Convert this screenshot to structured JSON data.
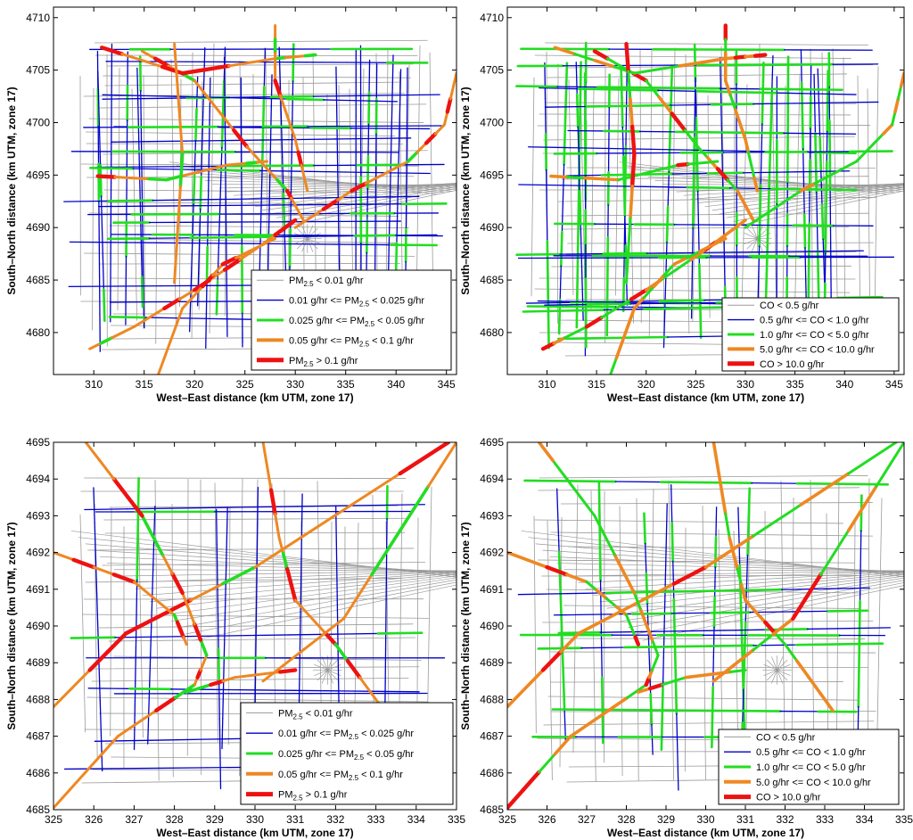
{
  "figure": {
    "panels": [
      {
        "id": "top-left",
        "pollutant": "pm25",
        "xlabel": "West–East distance (km UTM, zone 17)",
        "ylabel": "South–North distance (km UTM, zone 17)",
        "xlim": [
          306,
          346
        ],
        "ylim": [
          4676,
          4711
        ],
        "xticks": [
          "310",
          "315",
          "320",
          "325",
          "330",
          "335",
          "340",
          "345"
        ],
        "yticks": [
          "4680",
          "4685",
          "4690",
          "4695",
          "4700",
          "4705",
          "4710"
        ],
        "legend_location": "lower-right"
      },
      {
        "id": "top-right",
        "pollutant": "co",
        "xlabel": "West–East distance (km UTM, zone 17)",
        "ylabel": "South–North distance (km UTM, zone 17)",
        "xlim": [
          306,
          346
        ],
        "ylim": [
          4676,
          4711
        ],
        "xticks": [
          "310",
          "315",
          "320",
          "325",
          "330",
          "335",
          "340",
          "345"
        ],
        "yticks": [
          "4680",
          "4685",
          "4690",
          "4695",
          "4700",
          "4705",
          "4710"
        ],
        "legend_location": "lower-right"
      },
      {
        "id": "bottom-left",
        "pollutant": "pm25",
        "xlabel": "West–East distance (km UTM, zone 17)",
        "ylabel": "South–North distance (km UTM, zone 17)",
        "xlim": [
          325,
          335
        ],
        "ylim": [
          4685,
          4695
        ],
        "xticks": [
          "325",
          "326",
          "327",
          "328",
          "329",
          "330",
          "331",
          "332",
          "333",
          "334",
          "335"
        ],
        "yticks": [
          "4685",
          "4686",
          "4687",
          "4688",
          "4689",
          "4690",
          "4691",
          "4692",
          "4693",
          "4694",
          "4695"
        ],
        "legend_location": "lower-right"
      },
      {
        "id": "bottom-right",
        "pollutant": "co",
        "xlabel": "West–East distance (km UTM, zone 17)",
        "ylabel": "South–North distance (km UTM, zone 17)",
        "xlim": [
          325,
          335
        ],
        "ylim": [
          4685,
          4695
        ],
        "xticks": [
          "325",
          "326",
          "327",
          "328",
          "329",
          "330",
          "331",
          "332",
          "333",
          "334",
          "335"
        ],
        "yticks": [
          "4685",
          "4686",
          "4687",
          "4688",
          "4689",
          "4690",
          "4691",
          "4692",
          "4693",
          "4694",
          "4695"
        ],
        "legend_location": "lower-right"
      }
    ]
  },
  "legends": {
    "pm25": [
      {
        "pre": "PM",
        "sub": "2.5",
        "post": " < 0.01 g/hr",
        "color": "#9a9a9a",
        "width": 1
      },
      {
        "pre": "0.01 g/hr <= PM",
        "sub": "2.5",
        "post": " < 0.025 g/hr",
        "color": "#0000c8",
        "width": 1.4
      },
      {
        "pre": "0.025 g/hr <= PM",
        "sub": "2.5",
        "post": " < 0.05 g/hr",
        "color": "#22dd22",
        "width": 3
      },
      {
        "pre": "0.05 g/hr <= PM",
        "sub": "2.5",
        "post": " < 0.1 g/hr",
        "color": "#ee8822",
        "width": 4
      },
      {
        "pre": "PM",
        "sub": "2.5",
        "post": " > 0.1 g/hr",
        "color": "#ee1111",
        "width": 5
      }
    ],
    "co": [
      {
        "pre": "CO < 0.5 g/hr",
        "sub": "",
        "post": "",
        "color": "#9a9a9a",
        "width": 1
      },
      {
        "pre": "0.5 g/hr <= CO < 1.0 g/hr",
        "sub": "",
        "post": "",
        "color": "#0000c8",
        "width": 1.4
      },
      {
        "pre": "1.0 g/hr <= CO < 5.0 g/hr",
        "sub": "",
        "post": "",
        "color": "#22dd22",
        "width": 3
      },
      {
        "pre": "5.0 g/hr <= CO < 10.0 g/hr",
        "sub": "",
        "post": "",
        "color": "#ee8822",
        "width": 4
      },
      {
        "pre": "CO > 10.0 g/hr",
        "sub": "",
        "post": "",
        "color": "#ee1111",
        "width": 5
      }
    ]
  },
  "colors": {
    "road_minor": "#9a9a9a",
    "low": "#0000c8",
    "medium": "#22dd22",
    "high": "#ee8822",
    "very_high": "#ee1111"
  }
}
